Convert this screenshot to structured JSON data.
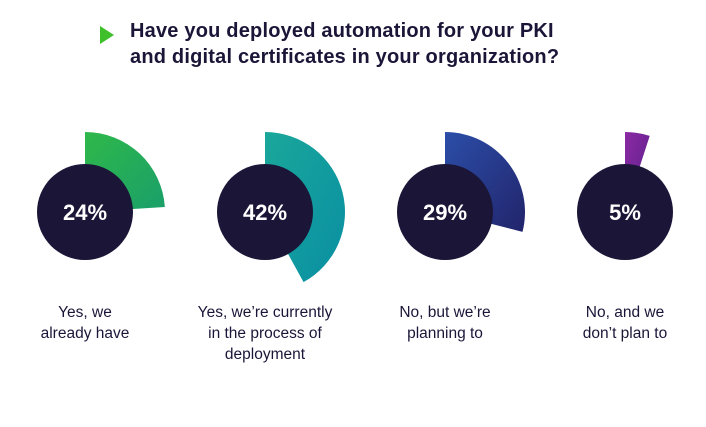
{
  "header": {
    "title": "Have you deployed automation for your PKI\nand digital certificates in your organization?",
    "accent_color": "#3fc02b",
    "icon": "play-triangle-icon"
  },
  "chart_data": {
    "type": "pie",
    "title": "Have you deployed automation for your PKI and digital certificates in your organization?",
    "unit": "%",
    "items": [
      {
        "label": "Yes, we\nalready have",
        "value": 24,
        "display": "24%",
        "color_start": "#2fb84a",
        "color_end": "#1a9f6a"
      },
      {
        "label": "Yes, we’re currently\nin the process of\ndeployment",
        "value": 42,
        "display": "42%",
        "color_start": "#1aa79a",
        "color_end": "#0a8fa3"
      },
      {
        "label": "No, but we’re\nplanning to",
        "value": 29,
        "display": "29%",
        "color_start": "#2b4ea8",
        "color_end": "#22246b"
      },
      {
        "label": "No, and we\ndon’t plan to",
        "value": 5,
        "display": "5%",
        "color_start": "#8a2aa3",
        "color_end": "#5b1f8a"
      }
    ],
    "center_color": "#1b1638"
  }
}
